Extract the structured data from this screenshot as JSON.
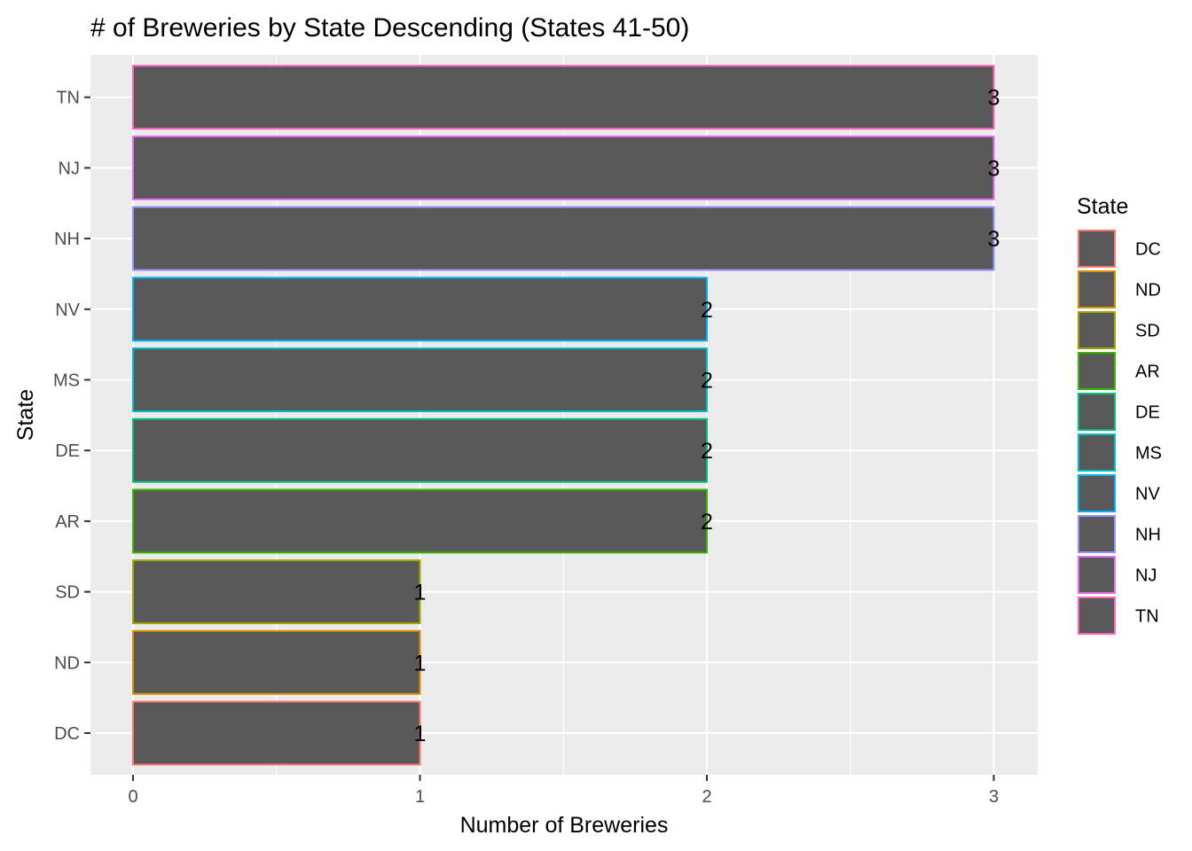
{
  "chart_data": {
    "type": "bar",
    "orientation": "horizontal",
    "title": "# of Breweries by State Descending (States 41-50)",
    "xlabel": "Number of Breweries",
    "ylabel": "State",
    "xlim": [
      0,
      3
    ],
    "x_ticks": [
      0,
      1,
      2,
      3
    ],
    "grid": true,
    "categories": [
      "DC",
      "ND",
      "SD",
      "AR",
      "DE",
      "MS",
      "NV",
      "NH",
      "NJ",
      "TN"
    ],
    "values": [
      1,
      1,
      1,
      2,
      2,
      2,
      2,
      3,
      3,
      3
    ],
    "data_labels": [
      "1",
      "1",
      "1",
      "2",
      "2",
      "2",
      "2",
      "3",
      "3",
      "3"
    ],
    "bar_fill": "#595959",
    "panel_background": "#ebebeb",
    "grid_color": "#ffffff",
    "outline_colors": {
      "DC": "#F8766D",
      "ND": "#D89000",
      "SD": "#A3A500",
      "AR": "#39B600",
      "DE": "#00BF7D",
      "MS": "#00BFC4",
      "NV": "#00B0F6",
      "NH": "#9590FF",
      "NJ": "#E76BF3",
      "TN": "#FF62BC"
    },
    "legend": {
      "title": "State",
      "position": "right",
      "items": [
        "DC",
        "ND",
        "SD",
        "AR",
        "DE",
        "MS",
        "NV",
        "NH",
        "NJ",
        "TN"
      ]
    }
  }
}
